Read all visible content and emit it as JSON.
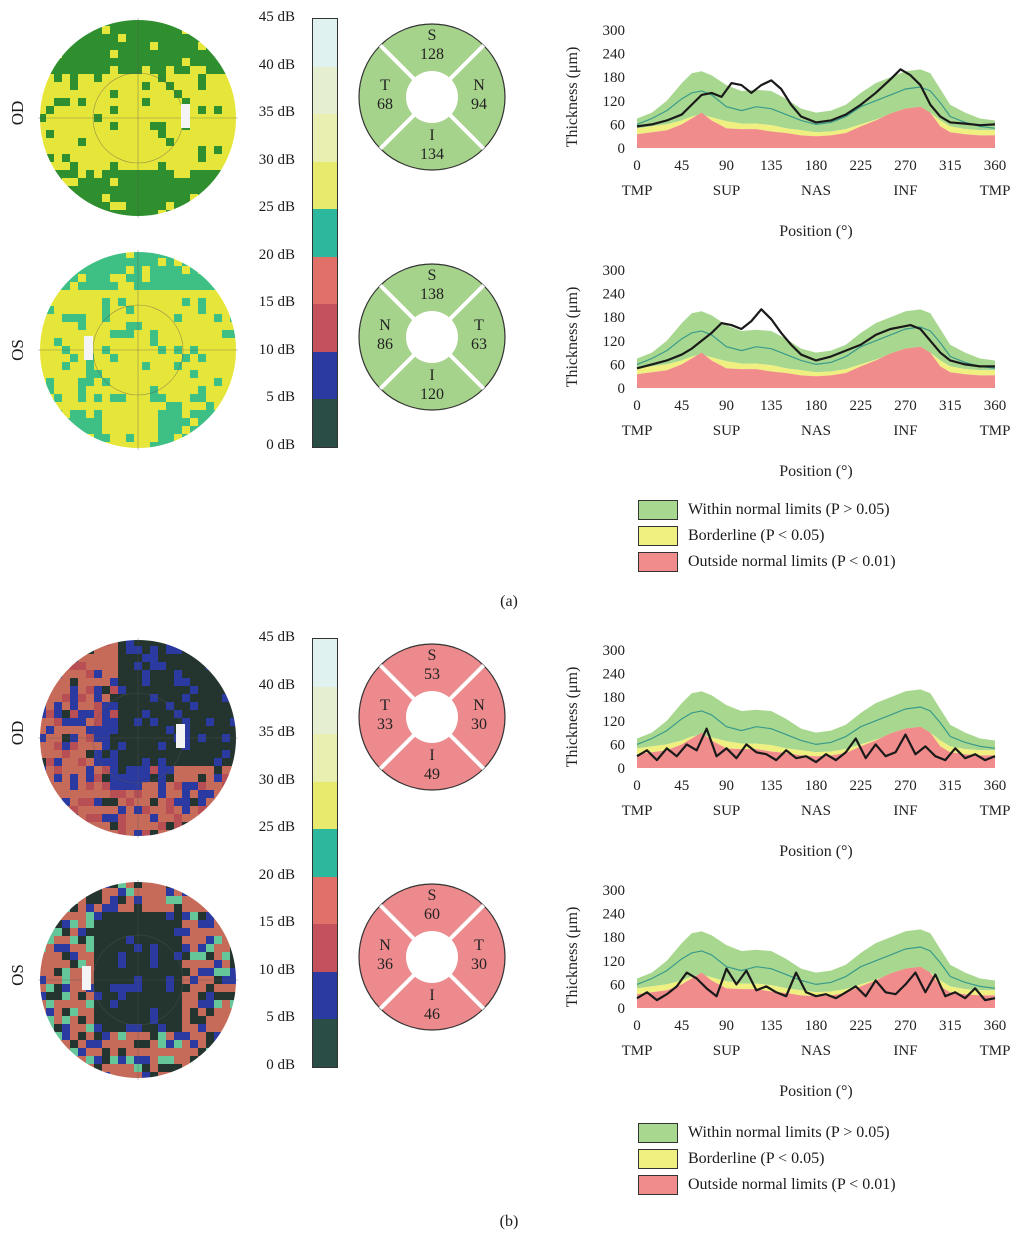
{
  "scale": {
    "labels": [
      "45 dB",
      "40 dB",
      "35 dB",
      "30 dB",
      "25 dB",
      "20 dB",
      "15 dB",
      "10 dB",
      "5 dB",
      "0 dB"
    ],
    "colors": [
      "#dff2f0",
      "#e5eed0",
      "#e8efb0",
      "#e8ea6e",
      "#2bb89c",
      "#e07068",
      "#c4525c",
      "#2b3aa0",
      "#2a4e45"
    ]
  },
  "legend": {
    "items": [
      {
        "label": "Within normal limits (P > 0.05)",
        "color": "#a8d890"
      },
      {
        "label": "Borderline (P < 0.05)",
        "color": "#f0f080"
      },
      {
        "label": "Outside normal limits (P < 0.01)",
        "color": "#f08c8c"
      }
    ]
  },
  "panels": [
    {
      "caption": "(a)",
      "eyes": [
        {
          "label": "OD",
          "vf_style": "normal",
          "clock": {
            "color": "#a6d38c",
            "S": "S",
            "S_val": "128",
            "I": "I",
            "I_val": "134",
            "L": "T",
            "L_val": "68",
            "R": "N",
            "R_val": "94"
          }
        },
        {
          "label": "OS",
          "vf_style": "normal2",
          "clock": {
            "color": "#a6d38c",
            "S": "S",
            "S_val": "138",
            "I": "I",
            "I_val": "120",
            "L": "N",
            "L_val": "86",
            "R": "T",
            "R_val": "63"
          }
        }
      ]
    },
    {
      "caption": "(b)",
      "eyes": [
        {
          "label": "OD",
          "vf_style": "damaged",
          "clock": {
            "color": "#ec8a8e",
            "S": "S",
            "S_val": "53",
            "I": "I",
            "I_val": "49",
            "L": "T",
            "L_val": "33",
            "R": "N",
            "R_val": "30"
          }
        },
        {
          "label": "OS",
          "vf_style": "damaged2",
          "clock": {
            "color": "#ec8a8e",
            "S": "S",
            "S_val": "60",
            "I": "I",
            "I_val": "46",
            "L": "N",
            "L_val": "36",
            "R": "T",
            "R_val": "30"
          }
        }
      ]
    }
  ],
  "chart_data": [
    {
      "type": "area",
      "panel": "a",
      "eye": "OD",
      "ylabel": "Thickness (μm)",
      "xlabel": "Position (°)",
      "ylim": [
        0,
        300
      ],
      "xlim": [
        0,
        360
      ],
      "yticks": [
        "300",
        "240",
        "180",
        "120",
        "60",
        "0"
      ],
      "xticks": [
        "0",
        "45",
        "90",
        "135",
        "180",
        "225",
        "270",
        "315",
        "360"
      ],
      "xtick_names": [
        "TMP",
        "SUP",
        "NAS",
        "INF",
        "TMP"
      ],
      "measured": {
        "x": [
          0,
          15,
          30,
          45,
          55,
          65,
          75,
          85,
          95,
          105,
          115,
          125,
          135,
          145,
          155,
          165,
          180,
          195,
          210,
          225,
          240,
          255,
          265,
          275,
          285,
          295,
          305,
          315,
          330,
          345,
          360
        ],
        "y": [
          55,
          60,
          70,
          85,
          110,
          135,
          140,
          130,
          165,
          160,
          140,
          160,
          172,
          150,
          110,
          80,
          65,
          70,
          85,
          110,
          140,
          175,
          200,
          185,
          160,
          110,
          80,
          65,
          62,
          58,
          60
        ]
      }
    },
    {
      "type": "area",
      "panel": "a",
      "eye": "OS",
      "ylabel": "Thickness (μm)",
      "xlabel": "Position (°)",
      "ylim": [
        0,
        300
      ],
      "xlim": [
        0,
        360
      ],
      "yticks": [
        "300",
        "240",
        "180",
        "120",
        "60",
        "0"
      ],
      "xticks": [
        "0",
        "45",
        "90",
        "135",
        "180",
        "225",
        "270",
        "315",
        "360"
      ],
      "xtick_names": [
        "TMP",
        "SUP",
        "NAS",
        "INF",
        "TMP"
      ],
      "measured": {
        "x": [
          0,
          15,
          30,
          45,
          55,
          65,
          75,
          85,
          95,
          105,
          115,
          125,
          135,
          145,
          155,
          165,
          180,
          195,
          210,
          225,
          240,
          255,
          265,
          275,
          285,
          295,
          305,
          315,
          330,
          345,
          360
        ],
        "y": [
          50,
          60,
          70,
          85,
          100,
          120,
          140,
          165,
          160,
          150,
          170,
          200,
          175,
          140,
          110,
          85,
          70,
          80,
          95,
          110,
          135,
          150,
          155,
          160,
          150,
          120,
          90,
          70,
          60,
          55,
          55
        ]
      }
    },
    {
      "type": "area",
      "panel": "b",
      "eye": "OD",
      "ylabel": "Thickness (μm)",
      "xlabel": "Position (°)",
      "ylim": [
        0,
        300
      ],
      "xlim": [
        0,
        360
      ],
      "yticks": [
        "300",
        "240",
        "180",
        "120",
        "60",
        "0"
      ],
      "xticks": [
        "0",
        "45",
        "90",
        "135",
        "180",
        "225",
        "270",
        "315",
        "360"
      ],
      "xtick_names": [
        "TMP",
        "SUP",
        "NAS",
        "INF",
        "TMP"
      ],
      "measured": {
        "x": [
          0,
          10,
          20,
          30,
          40,
          50,
          60,
          70,
          80,
          90,
          100,
          110,
          120,
          130,
          140,
          150,
          160,
          170,
          180,
          190,
          200,
          210,
          220,
          230,
          240,
          250,
          260,
          270,
          280,
          290,
          300,
          310,
          320,
          330,
          340,
          350,
          360
        ],
        "y": [
          30,
          45,
          20,
          50,
          30,
          60,
          45,
          100,
          30,
          50,
          25,
          60,
          40,
          35,
          20,
          45,
          25,
          30,
          15,
          35,
          20,
          40,
          75,
          25,
          60,
          30,
          40,
          85,
          35,
          55,
          30,
          20,
          50,
          25,
          35,
          20,
          30
        ]
      }
    },
    {
      "type": "area",
      "panel": "b",
      "eye": "OS",
      "ylabel": "Thickness (μm)",
      "xlabel": "Position (°)",
      "ylim": [
        0,
        300
      ],
      "xlim": [
        0,
        360
      ],
      "yticks": [
        "300",
        "240",
        "180",
        "120",
        "60",
        "0"
      ],
      "xticks": [
        "0",
        "45",
        "90",
        "135",
        "180",
        "225",
        "270",
        "315",
        "360"
      ],
      "xtick_names": [
        "TMP",
        "SUP",
        "NAS",
        "INF",
        "TMP"
      ],
      "measured": {
        "x": [
          0,
          10,
          20,
          30,
          40,
          50,
          60,
          70,
          80,
          90,
          100,
          110,
          120,
          130,
          140,
          150,
          160,
          170,
          180,
          190,
          200,
          210,
          220,
          230,
          240,
          250,
          260,
          270,
          280,
          290,
          300,
          310,
          320,
          330,
          340,
          350,
          360
        ],
        "y": [
          25,
          40,
          20,
          35,
          55,
          90,
          75,
          50,
          30,
          100,
          60,
          95,
          45,
          55,
          40,
          30,
          90,
          40,
          30,
          35,
          25,
          40,
          55,
          30,
          70,
          40,
          35,
          60,
          90,
          40,
          85,
          30,
          40,
          25,
          50,
          20,
          25
        ]
      }
    }
  ],
  "normative": {
    "x": [
      0,
      15,
      30,
      45,
      55,
      65,
      75,
      90,
      105,
      120,
      135,
      150,
      165,
      180,
      195,
      210,
      225,
      240,
      255,
      270,
      285,
      295,
      305,
      315,
      330,
      345,
      360
    ],
    "upper": [
      75,
      90,
      120,
      165,
      190,
      195,
      185,
      160,
      145,
      148,
      145,
      125,
      100,
      90,
      95,
      110,
      140,
      165,
      180,
      195,
      200,
      190,
      150,
      110,
      90,
      75,
      70
    ],
    "border": [
      50,
      55,
      60,
      70,
      80,
      85,
      78,
      68,
      62,
      62,
      58,
      50,
      45,
      40,
      42,
      48,
      60,
      72,
      85,
      95,
      100,
      90,
      70,
      55,
      48,
      45,
      45
    ],
    "red": [
      35,
      40,
      45,
      60,
      75,
      90,
      70,
      50,
      48,
      48,
      42,
      38,
      32,
      30,
      32,
      38,
      55,
      70,
      88,
      100,
      105,
      90,
      55,
      40,
      35,
      32,
      32
    ],
    "median": [
      60,
      75,
      95,
      125,
      140,
      145,
      135,
      105,
      95,
      105,
      100,
      85,
      70,
      60,
      65,
      80,
      105,
      120,
      135,
      150,
      155,
      145,
      115,
      80,
      65,
      55,
      50
    ]
  }
}
